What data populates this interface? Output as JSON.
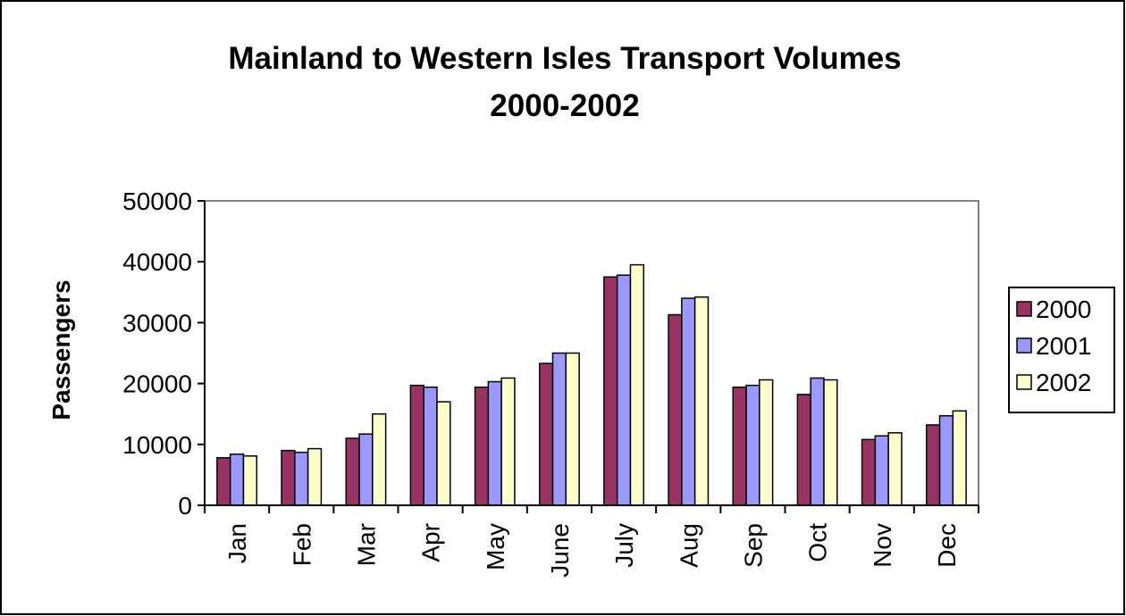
{
  "chart_data": {
    "type": "bar",
    "title_lines": [
      "Mainland to Western Isles Transport Volumes",
      "2000-2002"
    ],
    "ylabel": "Passengers",
    "xlabel": "",
    "ylim": [
      0,
      50000
    ],
    "yticks": [
      0,
      10000,
      20000,
      30000,
      40000,
      50000
    ],
    "grid": false,
    "legend_position": "right",
    "categories": [
      "Jan",
      "Feb",
      "Mar",
      "Apr",
      "May",
      "June",
      "July",
      "Aug",
      "Sep",
      "Oct",
      "Nov",
      "Dec"
    ],
    "series": [
      {
        "name": "2000",
        "color": "#993366",
        "values": [
          7800,
          9000,
          11000,
          19700,
          19400,
          23300,
          37500,
          31300,
          19400,
          18200,
          10800,
          13200
        ]
      },
      {
        "name": "2001",
        "color": "#9999ff",
        "values": [
          8400,
          8700,
          11700,
          19400,
          20300,
          25000,
          37800,
          34000,
          19700,
          20900,
          11400,
          14700
        ]
      },
      {
        "name": "2002",
        "color": "#ffffcc",
        "values": [
          8100,
          9300,
          15000,
          17000,
          20900,
          25000,
          39500,
          34200,
          20600,
          20600,
          11900,
          15500
        ]
      }
    ]
  }
}
